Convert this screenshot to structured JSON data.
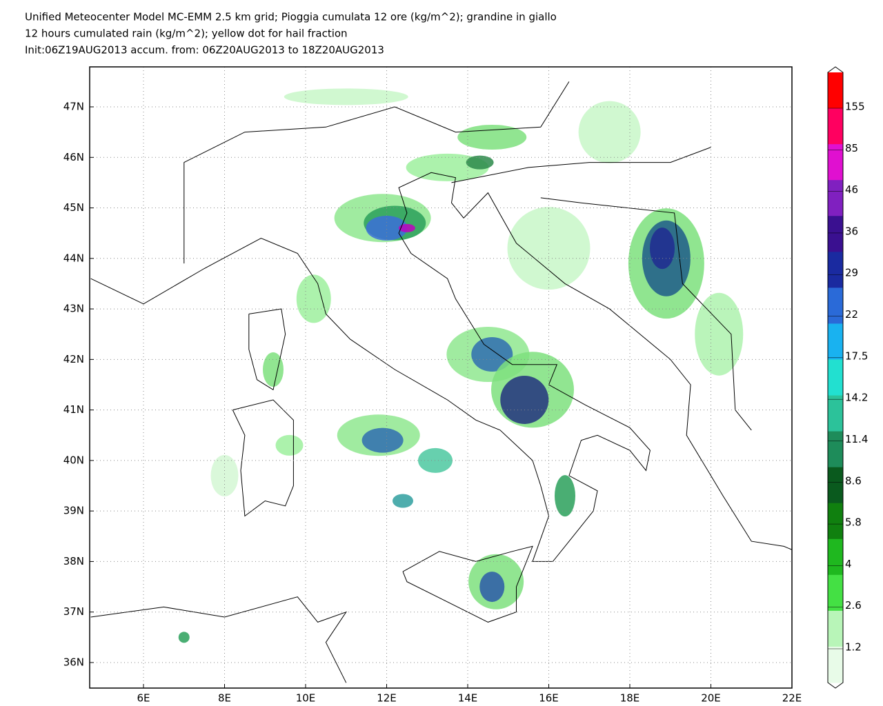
{
  "header": {
    "title_lines": [
      "Unified Meteocenter Model MC-EMM 2.5 km grid; Pioggia cumulata 12 ore (kg/m^2); grandine in giallo",
      "12 hours cumulated rain (kg/m^2); yellow dot for hail fraction",
      "Init:06Z19AUG2013 accum. from: 06Z20AUG2013 to 18Z20AUG2013"
    ]
  },
  "map": {
    "lon_ticks": [
      {
        "value": 6,
        "label": "6E"
      },
      {
        "value": 8,
        "label": "8E"
      },
      {
        "value": 10,
        "label": "10E"
      },
      {
        "value": 12,
        "label": "12E"
      },
      {
        "value": 14,
        "label": "14E"
      },
      {
        "value": 16,
        "label": "16E"
      },
      {
        "value": 18,
        "label": "18E"
      },
      {
        "value": 20,
        "label": "20E"
      },
      {
        "value": 22,
        "label": "22E"
      }
    ],
    "lat_ticks": [
      {
        "value": 36,
        "label": "36N"
      },
      {
        "value": 37,
        "label": "37N"
      },
      {
        "value": 38,
        "label": "38N"
      },
      {
        "value": 39,
        "label": "39N"
      },
      {
        "value": 40,
        "label": "40N"
      },
      {
        "value": 41,
        "label": "41N"
      },
      {
        "value": 42,
        "label": "42N"
      },
      {
        "value": 43,
        "label": "43N"
      },
      {
        "value": 44,
        "label": "44N"
      },
      {
        "value": 45,
        "label": "45N"
      },
      {
        "value": 46,
        "label": "46N"
      },
      {
        "value": 47,
        "label": "47N"
      }
    ]
  },
  "colorbar": {
    "labels": [
      "1.2",
      "2.6",
      "4",
      "5.8",
      "8.6",
      "11.4",
      "14.2",
      "17.5",
      "22",
      "29",
      "36",
      "46",
      "85",
      "155"
    ]
  }
}
